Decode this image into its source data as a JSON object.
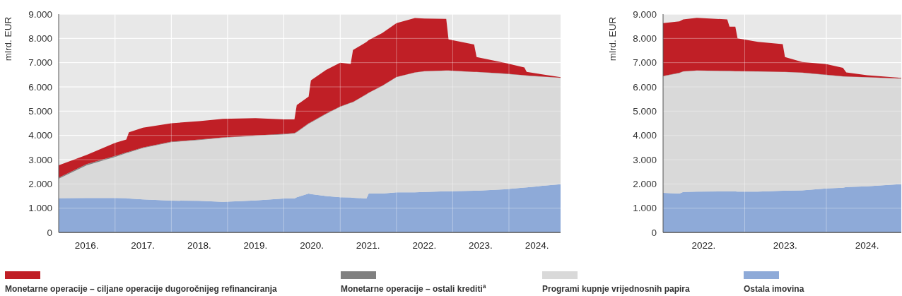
{
  "chart_data": [
    {
      "type": "area",
      "stacked": true,
      "ylabel": "mlrd. EUR",
      "legend": "bottom",
      "grid": true,
      "x": [
        "2016-01-01",
        "2016-07-01",
        "2017-01-01",
        "2017-03-15",
        "2017-04-01",
        "2017-07-01",
        "2018-01-01",
        "2018-07-01",
        "2018-12-01",
        "2019-07-01",
        "2020-01-01",
        "2020-03-10",
        "2020-03-25",
        "2020-06-10",
        "2020-06-25",
        "2020-10-01",
        "2021-01-01",
        "2021-03-10",
        "2021-03-25",
        "2021-06-20",
        "2021-07-05",
        "2021-10-01",
        "2022-01-01",
        "2022-05-01",
        "2022-07-01",
        "2022-11-20",
        "2022-12-05",
        "2023-05-20",
        "2023-06-05",
        "2023-12-01",
        "2024-04-10",
        "2024-04-25",
        "2024-12-01"
      ],
      "xlim": [
        "2016-01-01",
        "2024-12-01"
      ],
      "xticks": [
        {
          "value": "2016-07-01",
          "label": "2016."
        },
        {
          "value": "2017-01-01",
          "label": null
        },
        {
          "value": "2017-07-01",
          "label": "2017."
        },
        {
          "value": "2018-01-01",
          "label": null
        },
        {
          "value": "2018-07-01",
          "label": "2018."
        },
        {
          "value": "2019-01-01",
          "label": null
        },
        {
          "value": "2019-07-01",
          "label": "2019."
        },
        {
          "value": "2020-01-01",
          "label": null
        },
        {
          "value": "2020-07-01",
          "label": "2020."
        },
        {
          "value": "2021-01-01",
          "label": null
        },
        {
          "value": "2021-07-01",
          "label": "2021."
        },
        {
          "value": "2022-01-01",
          "label": null
        },
        {
          "value": "2022-07-01",
          "label": "2022."
        },
        {
          "value": "2023-01-01",
          "label": null
        },
        {
          "value": "2023-07-01",
          "label": "2023."
        },
        {
          "value": "2024-01-01",
          "label": null
        },
        {
          "value": "2024-07-01",
          "label": "2024."
        }
      ],
      "ylim": [
        0,
        9000
      ],
      "yticks": [
        {
          "value": 0,
          "label": "0"
        },
        {
          "value": 1000,
          "label": "1.000"
        },
        {
          "value": 2000,
          "label": "2.000"
        },
        {
          "value": 3000,
          "label": "3.000"
        },
        {
          "value": 4000,
          "label": "4.000"
        },
        {
          "value": 5000,
          "label": "5.000"
        },
        {
          "value": 6000,
          "label": "6.000"
        },
        {
          "value": 7000,
          "label": "7.000"
        },
        {
          "value": 8000,
          "label": "8.000"
        },
        {
          "value": 9000,
          "label": "9.000"
        }
      ],
      "series": [
        {
          "name": "Ostala imovina",
          "color": "#8eaad8",
          "values": [
            1410,
            1420,
            1420,
            1410,
            1400,
            1360,
            1310,
            1300,
            1260,
            1320,
            1400,
            1400,
            1450,
            1600,
            1580,
            1500,
            1450,
            1440,
            1430,
            1400,
            1600,
            1600,
            1650,
            1650,
            1670,
            1700,
            1700,
            1720,
            1720,
            1780,
            1850,
            1860,
            1990
          ]
        },
        {
          "name": "Programi kupnje vrijednosnih papira",
          "color": "#d9d9d9",
          "values": [
            800,
            1350,
            1690,
            1860,
            1900,
            2120,
            2410,
            2510,
            2640,
            2660,
            2640,
            2680,
            2680,
            2880,
            2950,
            3380,
            3730,
            3900,
            3940,
            4290,
            4150,
            4440,
            4750,
            4940,
            4970,
            4970,
            4970,
            4890,
            4890,
            4760,
            4620,
            4600,
            4380
          ]
        },
        {
          "name": "Monetarne operacije – ostali krediti$^{a}$",
          "color": "#808080",
          "values": [
            50,
            50,
            40,
            30,
            30,
            20,
            20,
            20,
            20,
            20,
            20,
            20,
            20,
            20,
            20,
            20,
            10,
            10,
            10,
            10,
            10,
            10,
            10,
            10,
            10,
            10,
            10,
            10,
            10,
            10,
            10,
            10,
            10
          ]
        },
        {
          "name": "Monetarne operacije – ciljane operacije dugoročnijeg refinanciranja",
          "color": "#c01f26",
          "values": [
            510,
            380,
            540,
            530,
            800,
            820,
            760,
            760,
            760,
            710,
            600,
            560,
            1100,
            1100,
            1720,
            1800,
            1810,
            1600,
            2140,
            2150,
            2170,
            2170,
            2220,
            2240,
            2170,
            2120,
            1280,
            1130,
            610,
            450,
            320,
            150,
            20
          ]
        }
      ]
    },
    {
      "type": "area",
      "stacked": true,
      "ylabel": "mlrd. EUR",
      "grid": true,
      "x": [
        "2022-01-01",
        "2022-03-15",
        "2022-04-01",
        "2022-06-01",
        "2022-10-15",
        "2022-10-25",
        "2022-11-20",
        "2022-11-30",
        "2023-03-01",
        "2023-06-20",
        "2023-06-30",
        "2023-09-15",
        "2024-01-01",
        "2024-03-15",
        "2024-03-30",
        "2024-07-01",
        "2024-12-01"
      ],
      "xlim": [
        "2022-01-01",
        "2024-12-01"
      ],
      "xticks": [
        {
          "value": "2022-07-01",
          "label": "2022."
        },
        {
          "value": "2023-01-01",
          "label": null
        },
        {
          "value": "2023-07-01",
          "label": "2023."
        },
        {
          "value": "2024-01-01",
          "label": null
        },
        {
          "value": "2024-07-01",
          "label": "2024."
        }
      ],
      "ylim": [
        0,
        9000
      ],
      "yticks": [
        {
          "value": 0,
          "label": "0"
        },
        {
          "value": 1000,
          "label": "1.000"
        },
        {
          "value": 2000,
          "label": "2.000"
        },
        {
          "value": 3000,
          "label": "3.000"
        },
        {
          "value": 4000,
          "label": "4.000"
        },
        {
          "value": 5000,
          "label": "5.000"
        },
        {
          "value": 6000,
          "label": "6.000"
        },
        {
          "value": 7000,
          "label": "7.000"
        },
        {
          "value": 8000,
          "label": "8.000"
        },
        {
          "value": 9000,
          "label": "9.000"
        }
      ],
      "series": [
        {
          "color": "#8eaad8",
          "values": [
            1630,
            1600,
            1670,
            1680,
            1690,
            1690,
            1690,
            1680,
            1680,
            1720,
            1720,
            1730,
            1810,
            1840,
            1870,
            1900,
            1990
          ]
        },
        {
          "color": "#d9d9d9",
          "values": [
            4810,
            4970,
            4960,
            4990,
            4960,
            4960,
            4950,
            4960,
            4950,
            4890,
            4890,
            4850,
            4680,
            4590,
            4550,
            4490,
            4350
          ]
        },
        {
          "color": "#808080",
          "values": [
            10,
            10,
            10,
            10,
            10,
            10,
            10,
            10,
            10,
            10,
            10,
            10,
            10,
            10,
            10,
            10,
            10
          ]
        },
        {
          "color": "#c01f26",
          "values": [
            2180,
            2120,
            2140,
            2170,
            2120,
            1820,
            1830,
            1350,
            1220,
            1140,
            610,
            440,
            440,
            350,
            170,
            80,
            20
          ]
        }
      ]
    }
  ]
}
